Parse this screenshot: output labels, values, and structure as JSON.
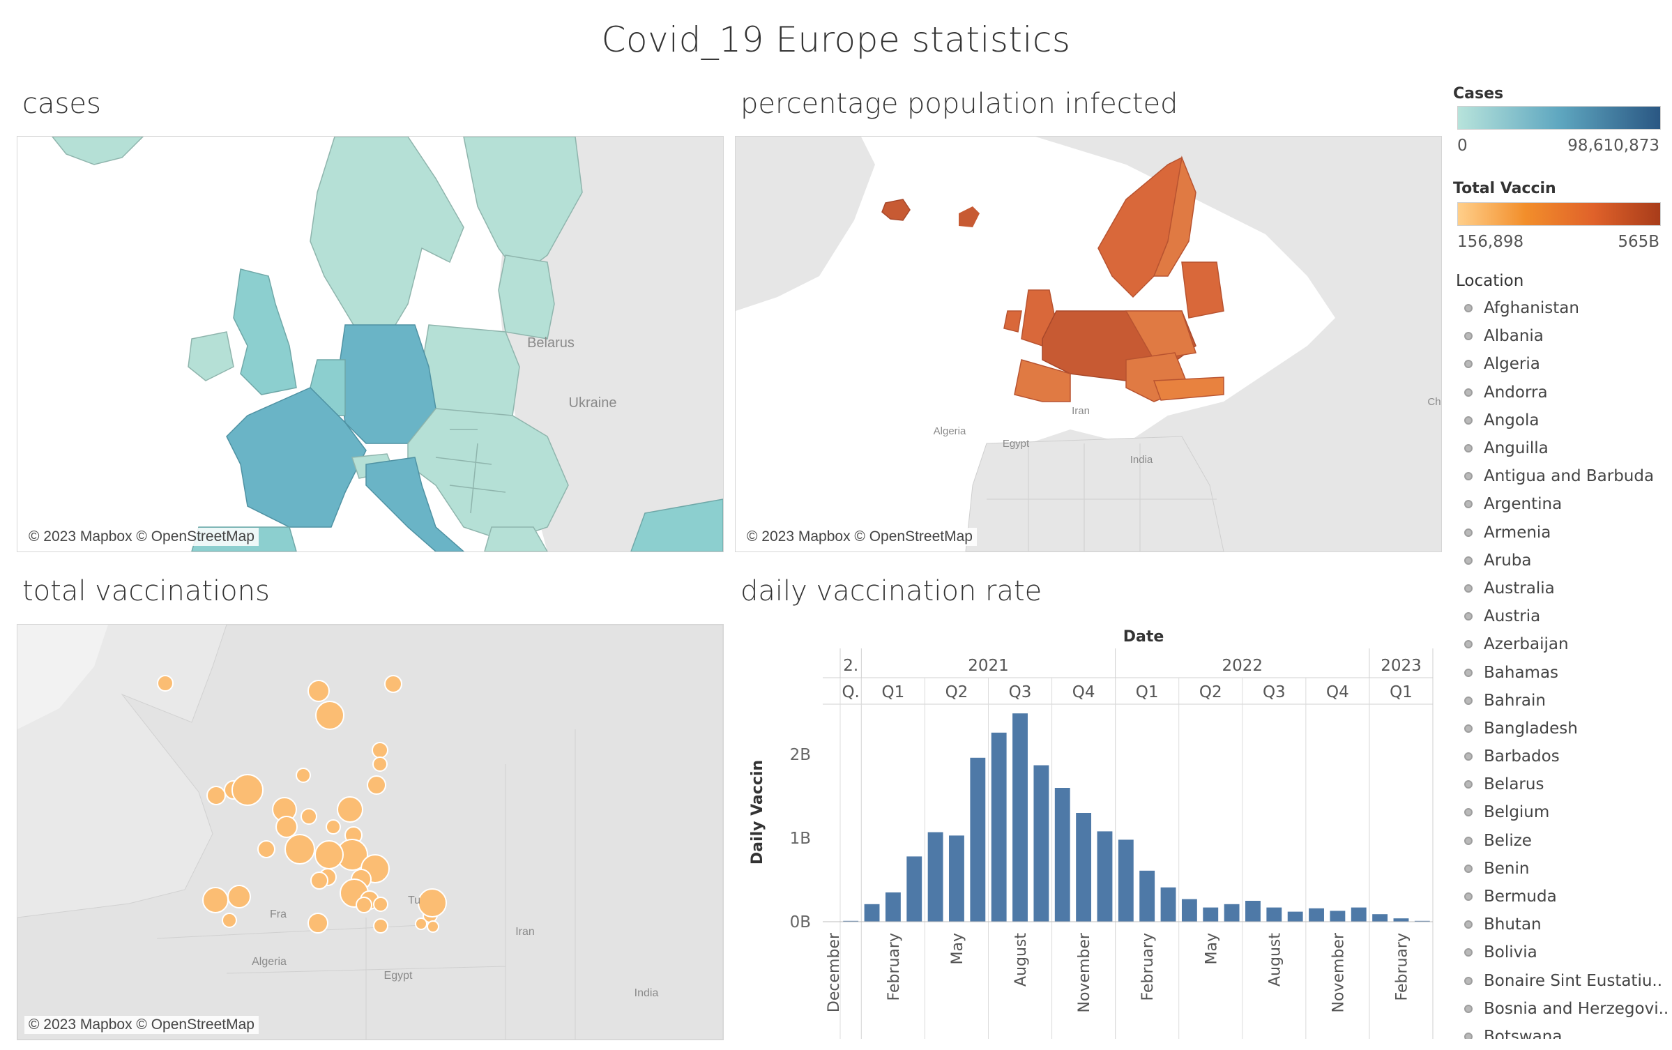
{
  "dashboard": {
    "title": "Covid_19 Europe statistics"
  },
  "worksheets": {
    "cases": {
      "title": "cases",
      "attribution": "© 2023 Mapbox © OpenStreetMap",
      "labels": [
        "Belarus",
        "Ukraine"
      ]
    },
    "infected": {
      "title": "percentage population infected",
      "attribution": "© 2023 Mapbox © OpenStreetMap",
      "labels": [
        "Algeria",
        "Egypt",
        "Iran",
        "India",
        "Ch"
      ]
    },
    "vaccinations": {
      "title": "total vaccinations",
      "attribution": "© 2023 Mapbox © OpenStreetMap",
      "labels": [
        "Algeria",
        "Egypt",
        "Iran",
        "India",
        "Fra",
        "Tu"
      ]
    },
    "daily_rate": {
      "title": "daily vaccination rate"
    }
  },
  "legends": {
    "cases": {
      "title": "Cases",
      "min": "0",
      "max": "98,610,873",
      "color_from": "#b7e3db",
      "color_to": "#2a5783"
    },
    "vaccin": {
      "title": "Total Vaccin",
      "min": "156,898",
      "max": "565B",
      "color_from": "#ffcf8a",
      "color_mid": "#f28e2b",
      "color_to": "#a83c1a"
    },
    "location": {
      "title": "Location",
      "items": [
        "Afghanistan",
        "Albania",
        "Algeria",
        "Andorra",
        "Angola",
        "Anguilla",
        "Antigua and Barbuda",
        "Argentina",
        "Armenia",
        "Aruba",
        "Australia",
        "Austria",
        "Azerbaijan",
        "Bahamas",
        "Bahrain",
        "Bangladesh",
        "Barbados",
        "Belarus",
        "Belgium",
        "Belize",
        "Benin",
        "Bermuda",
        "Bhutan",
        "Bolivia",
        "Bonaire Sint Eustatiu..",
        "Bosnia and Herzegovi..",
        "Botswana"
      ]
    }
  },
  "colors": {
    "cases_low": "#b5e0d6",
    "cases_mid": "#8ccfcf",
    "cases_high": "#6ab4c6",
    "infected": "#d9683a",
    "infected_dark": "#c75a33",
    "vacc_bubble": "#fbbd73",
    "bar": "#4e79a7",
    "land": "#e6e6e6",
    "sea": "#ffffff"
  },
  "chart_data": {
    "type": "bar",
    "title": "daily vaccination rate",
    "xlabel": "Date",
    "ylabel": "Daily Vaccin",
    "yticks": [
      "0B",
      "1B",
      "2B"
    ],
    "ylim": [
      0,
      2.6
    ],
    "year_headers": [
      "2.",
      "2021",
      "2022",
      "2023"
    ],
    "quarter_headers": [
      "Q.",
      "Q1",
      "Q2",
      "Q3",
      "Q4",
      "Q1",
      "Q2",
      "Q3",
      "Q4",
      "Q1"
    ],
    "month_labels": [
      "December",
      "February",
      "May",
      "August",
      "November",
      "February",
      "May",
      "August",
      "November",
      "February"
    ],
    "categories": [
      "2020-12",
      "2021-01",
      "2021-02",
      "2021-03",
      "2021-04",
      "2021-05",
      "2021-06",
      "2021-07",
      "2021-08",
      "2021-09",
      "2021-10",
      "2021-11",
      "2021-12",
      "2022-01",
      "2022-02",
      "2022-03",
      "2022-04",
      "2022-05",
      "2022-06",
      "2022-07",
      "2022-08",
      "2022-09",
      "2022-10",
      "2022-11",
      "2022-12",
      "2023-01",
      "2023-02",
      "2023-03"
    ],
    "values": [
      0.01,
      0.21,
      0.35,
      0.78,
      1.07,
      1.03,
      1.96,
      2.26,
      2.49,
      1.87,
      1.6,
      1.3,
      1.08,
      0.98,
      0.61,
      0.41,
      0.27,
      0.17,
      0.21,
      0.25,
      0.17,
      0.12,
      0.16,
      0.13,
      0.17,
      0.09,
      0.04,
      0.01
    ]
  }
}
